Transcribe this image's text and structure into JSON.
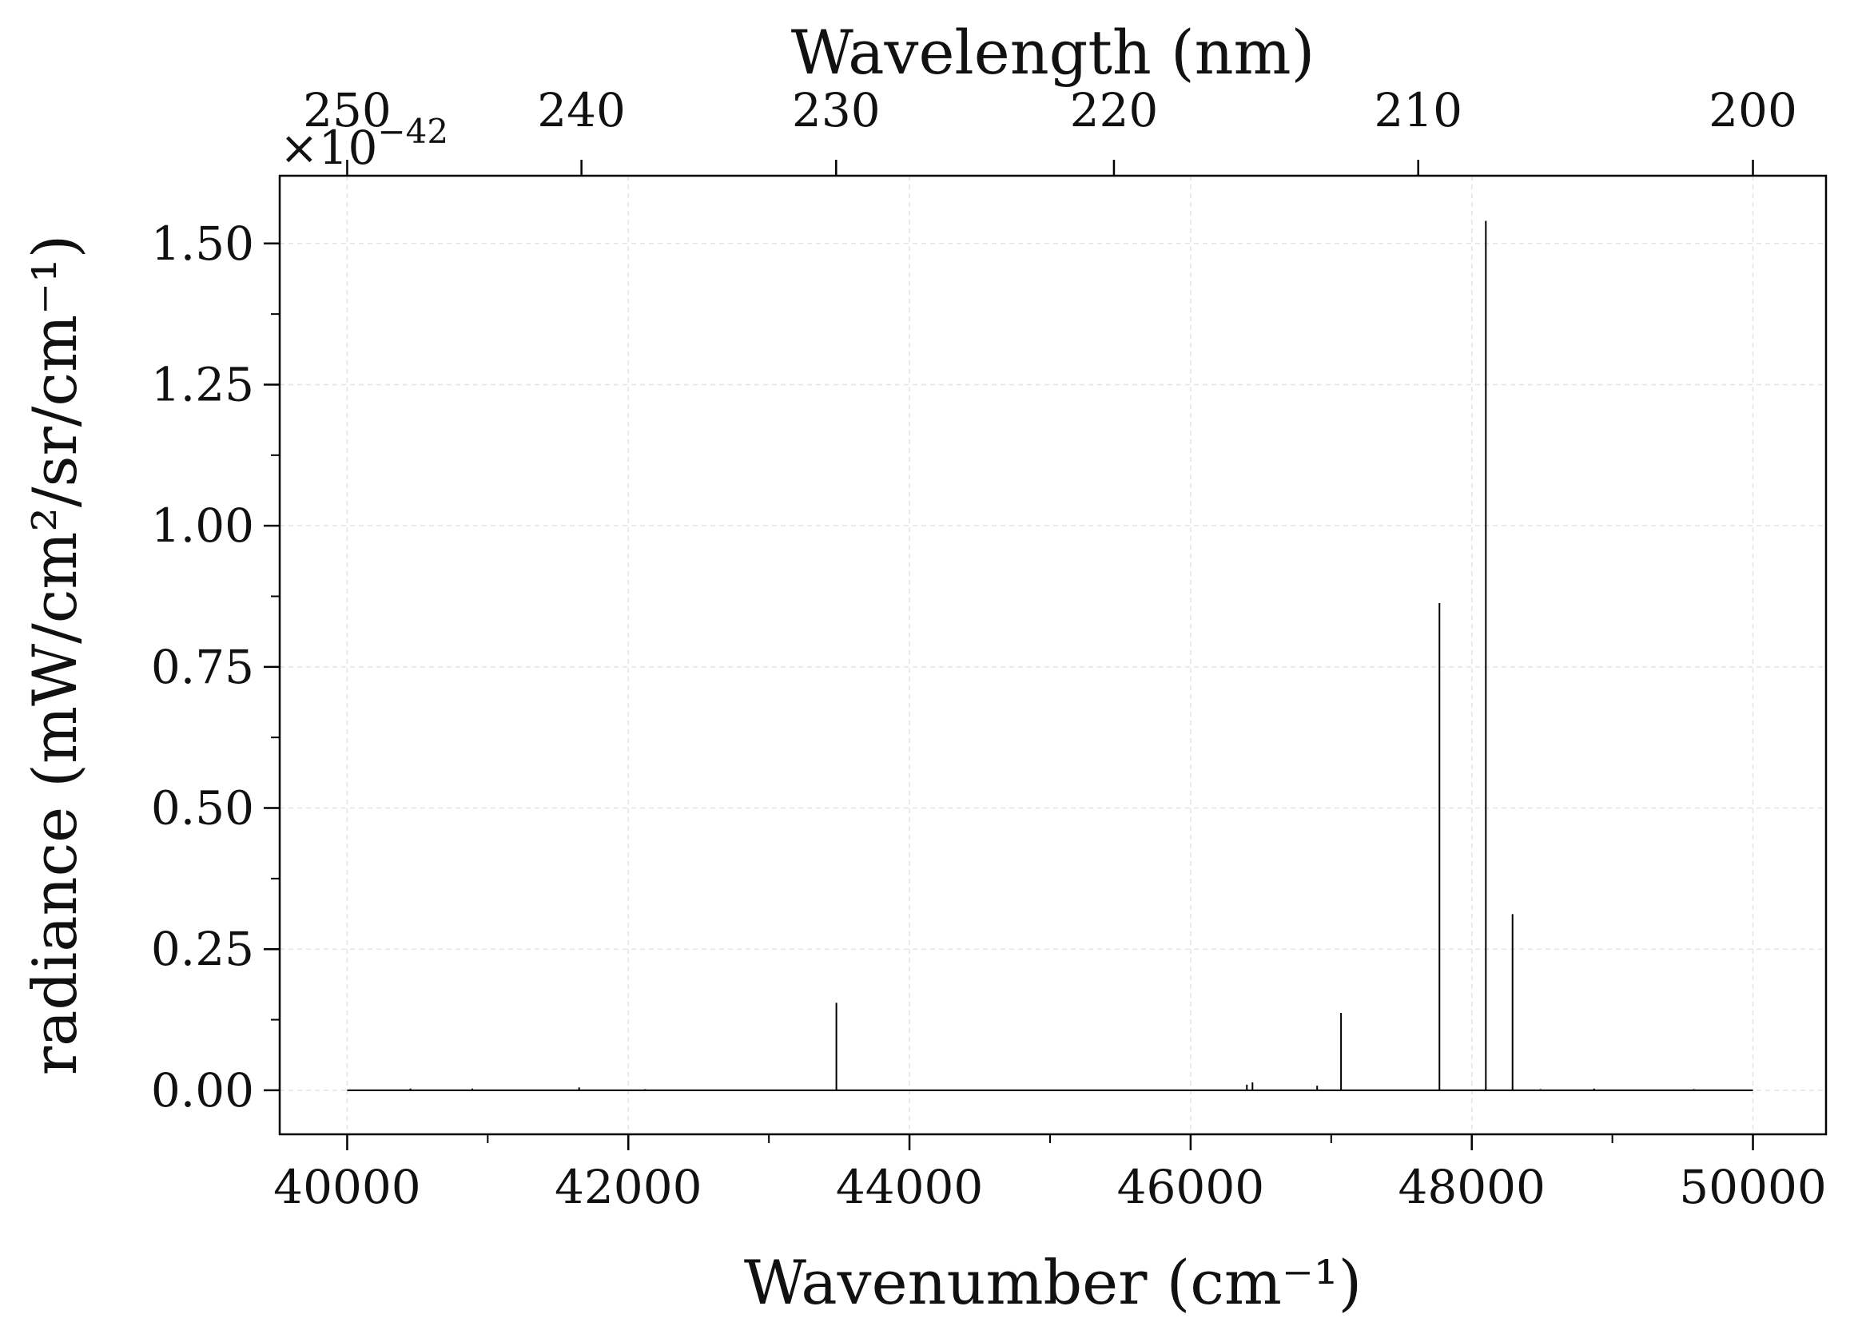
{
  "chart_data": {
    "type": "line",
    "xlabel": "Wavenumber (cm⁻¹)",
    "x2label": "Wavelength (nm)",
    "ylabel": "radiance (mW/cm²/sr/cm⁻¹)",
    "y_offset_base": "×10",
    "y_offset_exponent": "−42",
    "xlim": [
      39520,
      50520
    ],
    "ylim": [
      -0.078,
      1.62
    ],
    "x_ticks": [
      40000,
      42000,
      44000,
      46000,
      48000,
      50000
    ],
    "x_tick_labels": [
      "40000",
      "42000",
      "44000",
      "46000",
      "48000",
      "50000"
    ],
    "x_minor_ticks": [
      41000,
      43000,
      45000,
      47000,
      49000
    ],
    "x2_ticks_nm": [
      250,
      240,
      230,
      220,
      210,
      200
    ],
    "x2_tick_labels": [
      "250",
      "240",
      "230",
      "220",
      "210",
      "200"
    ],
    "y_ticks": [
      0,
      0.25,
      0.5,
      0.75,
      1.0,
      1.25,
      1.5
    ],
    "y_tick_labels": [
      "0.00",
      "0.25",
      "0.50",
      "0.75",
      "1.00",
      "1.25",
      "1.50"
    ],
    "y_minor_ticks": [
      0.125,
      0.375,
      0.625,
      0.875,
      1.125,
      1.375
    ],
    "grid": true,
    "series": [
      {
        "color": "#000000",
        "baseline_range": [
          40000,
          50000
        ],
        "lines": [
          {
            "x": 40450,
            "y": 0.003
          },
          {
            "x": 40890,
            "y": 0.003
          },
          {
            "x": 41650,
            "y": 0.005
          },
          {
            "x": 42120,
            "y": 0.002
          },
          {
            "x": 43480,
            "y": 0.155
          },
          {
            "x": 46400,
            "y": 0.01
          },
          {
            "x": 46440,
            "y": 0.014
          },
          {
            "x": 46900,
            "y": 0.008
          },
          {
            "x": 47070,
            "y": 0.137
          },
          {
            "x": 47770,
            "y": 0.863
          },
          {
            "x": 48100,
            "y": 1.54
          },
          {
            "x": 48290,
            "y": 0.312
          },
          {
            "x": 48490,
            "y": 0.002
          },
          {
            "x": 48870,
            "y": 0.003
          },
          {
            "x": 49580,
            "y": 0.002
          }
        ]
      }
    ]
  }
}
